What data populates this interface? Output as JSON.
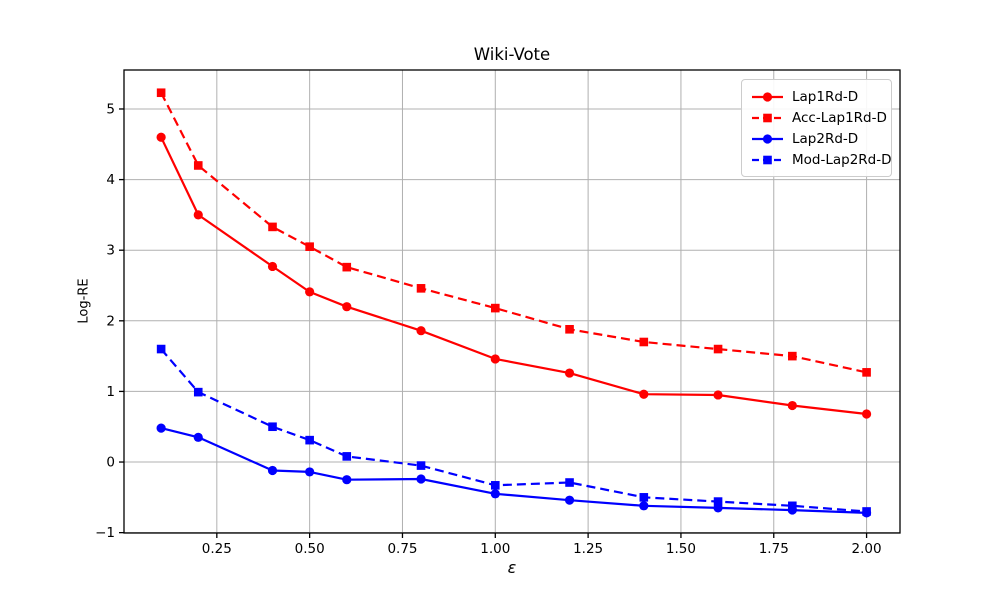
{
  "title": "Wiki-Vote",
  "chart_data": {
    "type": "line",
    "title": "Wiki-Vote",
    "xlabel": "ε",
    "ylabel": "Log-RE",
    "grid": true,
    "legend_position": "upper right",
    "x": [
      0.1,
      0.2,
      0.4,
      0.5,
      0.6,
      0.8,
      1.0,
      1.2,
      1.4,
      1.6,
      1.8,
      2.0
    ],
    "xlim": [
      0.0,
      2.09
    ],
    "ylim": [
      -1.005,
      5.552
    ],
    "xticks": [
      0.25,
      0.5,
      0.75,
      1.0,
      1.25,
      1.5,
      1.75,
      2.0
    ],
    "xtick_labels": [
      "0.25",
      "0.50",
      "0.75",
      "1.00",
      "1.25",
      "1.50",
      "1.75",
      "2.00"
    ],
    "yticks": [
      -1,
      0,
      1,
      2,
      3,
      4,
      5
    ],
    "ytick_labels": [
      "−1",
      "0",
      "1",
      "2",
      "3",
      "4",
      "5"
    ],
    "series": [
      {
        "name": "Lap1Rd-D",
        "color": "#ff0000",
        "line": "solid",
        "marker": "circle",
        "values": [
          4.6,
          3.5,
          2.77,
          2.41,
          2.2,
          1.86,
          1.46,
          1.26,
          0.96,
          0.95,
          0.8,
          0.68
        ]
      },
      {
        "name": "Acc-Lap1Rd-D",
        "color": "#ff0000",
        "line": "dashed",
        "marker": "square",
        "values": [
          5.23,
          4.2,
          3.33,
          3.05,
          2.76,
          2.46,
          2.18,
          1.88,
          1.7,
          1.6,
          1.5,
          1.27
        ]
      },
      {
        "name": "Lap2Rd-D",
        "color": "#0000ff",
        "line": "solid",
        "marker": "circle",
        "values": [
          0.48,
          0.35,
          -0.12,
          -0.14,
          -0.25,
          -0.24,
          -0.45,
          -0.54,
          -0.62,
          -0.65,
          -0.68,
          -0.72
        ]
      },
      {
        "name": "Mod-Lap2Rd-D",
        "color": "#0000ff",
        "line": "dashed",
        "marker": "square",
        "values": [
          1.6,
          0.99,
          0.5,
          0.31,
          0.08,
          -0.05,
          -0.33,
          -0.29,
          -0.5,
          -0.56,
          -0.62,
          -0.7
        ]
      }
    ]
  },
  "colors": {
    "grid": "#b0b0b0",
    "axis": "#000000",
    "tick_label": "#000000",
    "background": "#ffffff"
  }
}
